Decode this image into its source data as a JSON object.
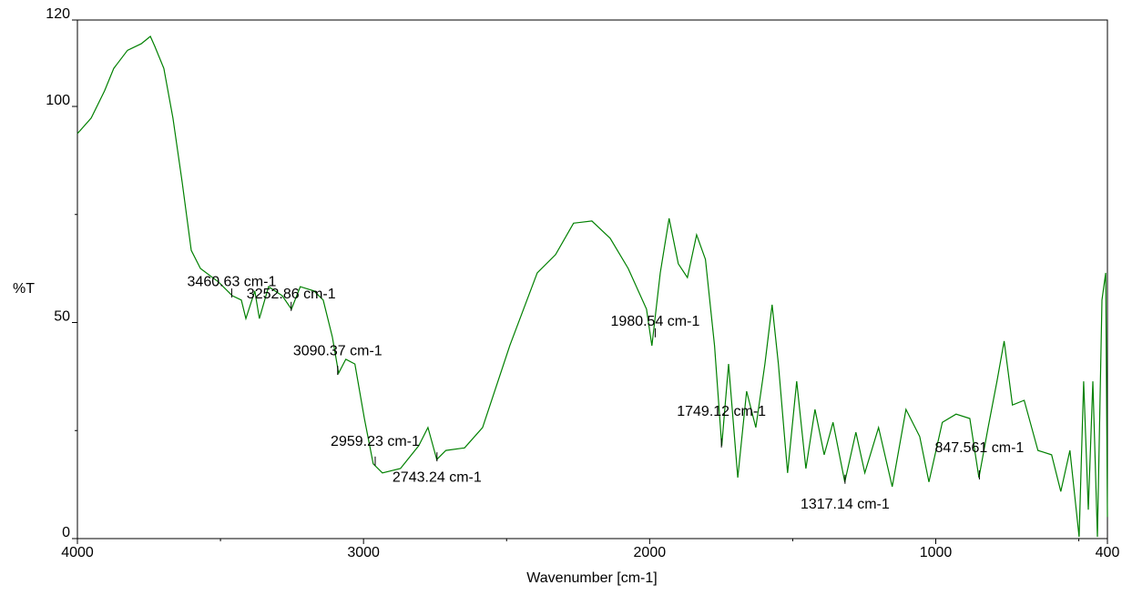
{
  "chart_data": {
    "type": "line",
    "x_label": "Wavenumber [cm-1]",
    "y_label": "%T",
    "xlim": [
      4000,
      400
    ],
    "xticks": [
      4000,
      3000,
      2000,
      1000,
      400
    ],
    "x_minor_ticks": [
      3500,
      2500,
      1500,
      500
    ],
    "ylim": [
      0,
      120
    ],
    "yticks": [
      0,
      50,
      100,
      120
    ],
    "y_minor_ticks": [
      25,
      75
    ],
    "series": [
      {
        "color": "#008000",
        "x": [
          4000,
          3952,
          3905,
          3873,
          3825,
          3777,
          3745,
          3730,
          3698,
          3666,
          3634,
          3602,
          3570,
          3507,
          3459,
          3427,
          3411,
          3380,
          3364,
          3332,
          3284,
          3252,
          3221,
          3173,
          3141,
          3109,
          3087,
          3062,
          3030,
          2997,
          2966,
          2934,
          2871,
          2807,
          2775,
          2744,
          2712,
          2647,
          2584,
          2489,
          2393,
          2329,
          2266,
          2202,
          2138,
          2075,
          2011,
          1992,
          1963,
          1932,
          1900,
          1868,
          1836,
          1805,
          1773,
          1748,
          1724,
          1692,
          1661,
          1629,
          1597,
          1572,
          1550,
          1518,
          1486,
          1454,
          1422,
          1390,
          1359,
          1318,
          1279,
          1248,
          1200,
          1152,
          1104,
          1056,
          1024,
          977,
          929,
          881,
          849,
          817,
          786,
          761,
          732,
          691,
          643,
          595,
          563,
          531,
          499,
          483,
          467,
          451,
          435,
          419,
          406,
          400
        ],
        "values": [
          93.7,
          97.3,
          103.6,
          108.8,
          113,
          114.5,
          116.2,
          114,
          108.8,
          97.3,
          82.5,
          66.7,
          62.5,
          59.4,
          56.2,
          55.2,
          50.9,
          57.3,
          50.9,
          58.3,
          56.2,
          53.1,
          58.3,
          57.3,
          55.2,
          46.7,
          38.3,
          41.5,
          40.4,
          27.8,
          17.3,
          15.2,
          16.2,
          21.5,
          25.7,
          18.3,
          20.4,
          21,
          25.7,
          44.6,
          61.5,
          65.7,
          73,
          73.5,
          69.5,
          62.5,
          53.1,
          44.6,
          61.5,
          74.1,
          63.6,
          60.4,
          70.3,
          64.6,
          44.6,
          21.5,
          40.4,
          14.1,
          34.1,
          25.7,
          40.4,
          54.1,
          40.4,
          15.2,
          36.4,
          16.2,
          29.9,
          19.4,
          26.9,
          13.1,
          24.6,
          15.2,
          25.7,
          12,
          29.9,
          23.6,
          13.1,
          26.9,
          28.8,
          27.8,
          14.1,
          25.7,
          36.4,
          45.7,
          30.9,
          32,
          20.4,
          19.4,
          10.9,
          20.4,
          0.4,
          36.4,
          6.7,
          36.4,
          0.4,
          55.2,
          61.5,
          5
        ]
      }
    ],
    "annotations": [
      {
        "x": 3460.63,
        "y": 56.2,
        "label": "3460.63 cm-1"
      },
      {
        "x": 3252.86,
        "y": 53.1,
        "label": "3252.86 cm-1"
      },
      {
        "x": 3090.37,
        "y": 38.3,
        "label": "3090.37 cm-1"
      },
      {
        "x": 2959.23,
        "y": 17.3,
        "label": "2959.23 cm-1"
      },
      {
        "x": 2743.24,
        "y": 18.3,
        "label": "2743.24 cm-1"
      },
      {
        "x": 1980.54,
        "y": 47,
        "label": "1980.54 cm-1"
      },
      {
        "x": 1749.12,
        "y": 21.5,
        "label": "1749.12 cm-1"
      },
      {
        "x": 1317.14,
        "y": 13.1,
        "label": "1317.14 cm-1"
      },
      {
        "x": 847.561,
        "y": 14.1,
        "label": "847.561 cm-1"
      }
    ]
  }
}
